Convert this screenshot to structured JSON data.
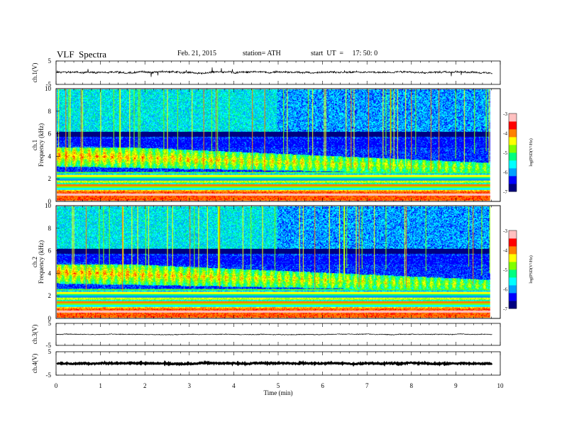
{
  "header": {
    "title": "VLF  Spectra",
    "date": "Feb. 21, 2015",
    "station": "station= ATH",
    "start": "start  UT  =     17: 50: 0"
  },
  "chart_data": [
    {
      "type": "line",
      "ylabel": "ch.1(V)",
      "ylim": [
        -5,
        5
      ],
      "yticks": [
        "5",
        "-5"
      ],
      "xlim": [
        0,
        10
      ],
      "series_level": 0.2
    },
    {
      "type": "heatmap",
      "ylabel": "ch.1\nFrequency (kHz)",
      "ylabel_channel": "ch.1",
      "ylabel_freq": "Frequency (kHz)",
      "ylim": [
        0,
        10
      ],
      "yticks": [
        "0",
        "2",
        "4",
        "6",
        "8",
        "10"
      ],
      "xlim": [
        0,
        10
      ],
      "colorbar": {
        "label": "log(PSD(V²/Hz)",
        "ticks": [
          "-3",
          "-4",
          "-5",
          "-6",
          "-7"
        ],
        "range": [
          -7,
          -3
        ]
      }
    },
    {
      "type": "heatmap",
      "ylabel_channel": "ch.2",
      "ylabel_freq": "Frequency (kHz)",
      "ylim": [
        0,
        10
      ],
      "yticks": [
        "0",
        "2",
        "4",
        "6",
        "8",
        "10"
      ],
      "xlim": [
        0,
        10
      ],
      "colorbar": {
        "label": "log(PSD(V²/Hz)",
        "ticks": [
          "-3",
          "-4",
          "-5",
          "-6",
          "-7"
        ],
        "range": [
          -7,
          -3
        ]
      }
    },
    {
      "type": "line",
      "ylabel": "ch.3(V)",
      "ylim": [
        -5,
        5
      ],
      "yticks": [
        "5",
        "-5"
      ],
      "xlim": [
        0,
        10
      ],
      "series_level": 0
    },
    {
      "type": "line",
      "ylabel": "ch.4(V)",
      "ylim": [
        -5,
        5
      ],
      "yticks": [
        "5",
        "-5"
      ],
      "xlim": [
        0,
        10
      ],
      "xlabel": "Time  (min)",
      "xticks": [
        "0",
        "1",
        "2",
        "3",
        "4",
        "5",
        "6",
        "7",
        "8",
        "9",
        "10"
      ],
      "series_level": 0
    }
  ],
  "colors": {
    "scale": [
      "#000080",
      "#0000ff",
      "#00a0ff",
      "#00ffff",
      "#00ff80",
      "#80ff00",
      "#ffff00",
      "#ff8000",
      "#ff0000",
      "#ffc0c0",
      "#ffffff"
    ],
    "frame": "#000000"
  }
}
